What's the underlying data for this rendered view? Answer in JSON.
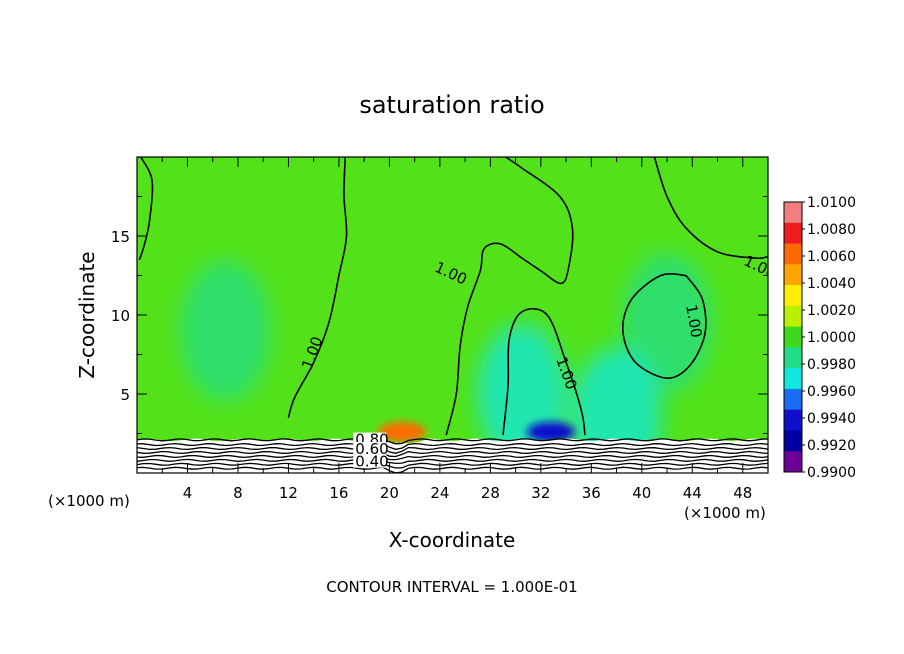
{
  "chart_data": {
    "type": "heatmap",
    "title": "saturation ratio",
    "xlabel": "X-coordinate",
    "ylabel": "Z-coordinate",
    "x_unit_left": "(×1000 m)",
    "x_unit_right": "(×1000 m)",
    "xlim": [
      0,
      50
    ],
    "ylim": [
      0,
      20
    ],
    "xticks": [
      4,
      8,
      12,
      16,
      20,
      24,
      28,
      32,
      36,
      40,
      44,
      48
    ],
    "yticks": [
      5,
      10,
      15
    ],
    "footer": "CONTOUR INTERVAL = 1.000E-01",
    "colorbar": {
      "labels": [
        "1.0100",
        "1.0080",
        "1.0060",
        "1.0040",
        "1.0020",
        "1.0000",
        "0.9980",
        "0.9960",
        "0.9940",
        "0.9920",
        "0.9900"
      ],
      "colors": [
        "#f08080",
        "#ee1c1c",
        "#ff6a00",
        "#ffa500",
        "#ffee00",
        "#b8f000",
        "#3dd91c",
        "#22dd88",
        "#10e8e0",
        "#1b6cf0",
        "#1010cc",
        "#0000a0",
        "#6a0096"
      ]
    },
    "contour_labels": [
      {
        "text": "1.00",
        "x": 23.5,
        "z": 12.8
      },
      {
        "text": "1.00",
        "x": 48.0,
        "z": 13.2
      },
      {
        "text": "1.00",
        "x": 43.5,
        "z": 10.6
      },
      {
        "text": "1.00",
        "x": 33.2,
        "z": 7.2
      },
      {
        "text": "1.00",
        "x": 13.8,
        "z": 6.5
      },
      {
        "text": "0.80",
        "x": 17.3,
        "z": 1.8
      },
      {
        "text": "0.60",
        "x": 17.3,
        "z": 1.2
      },
      {
        "text": "0.40",
        "x": 17.3,
        "z": 0.4
      }
    ],
    "contours_1_00": [
      [
        [
          0.3,
          20
        ],
        [
          1.2,
          18.5
        ],
        [
          1.0,
          16
        ],
        [
          0.6,
          14.5
        ],
        [
          0.2,
          13.5
        ]
      ],
      [
        [
          16.5,
          20
        ],
        [
          16.4,
          17.5
        ],
        [
          16.6,
          15
        ],
        [
          16.0,
          12.5
        ],
        [
          15.2,
          9.5
        ],
        [
          14.0,
          7
        ],
        [
          12.5,
          4.8
        ],
        [
          12.0,
          3.5
        ]
      ],
      [
        [
          24.5,
          2.4
        ],
        [
          25.3,
          5
        ],
        [
          25.6,
          8
        ],
        [
          26.2,
          10.5
        ],
        [
          27.2,
          12.8
        ],
        [
          27.5,
          14.2
        ],
        [
          28.8,
          14.5
        ],
        [
          30.5,
          13.6
        ],
        [
          32.0,
          12.8
        ],
        [
          33.6,
          12.0
        ],
        [
          34.2,
          13.0
        ],
        [
          34.5,
          15.5
        ],
        [
          33.5,
          17.5
        ],
        [
          30.5,
          19.3
        ],
        [
          29.2,
          20
        ]
      ],
      [
        [
          29.0,
          2.4
        ],
        [
          29.4,
          5.5
        ],
        [
          29.5,
          8.5
        ],
        [
          30.5,
          10.2
        ],
        [
          32.5,
          10.0
        ],
        [
          34.0,
          7.0
        ],
        [
          35.2,
          4.0
        ],
        [
          35.5,
          2.4
        ]
      ],
      [
        [
          41.0,
          20
        ],
        [
          42.0,
          17.5
        ],
        [
          43.5,
          15.5
        ],
        [
          46.0,
          14.0
        ],
        [
          49.0,
          13.6
        ],
        [
          50,
          13.7
        ]
      ],
      [
        [
          43.5,
          12.5
        ],
        [
          41.5,
          12.5
        ],
        [
          39.2,
          11
        ],
        [
          38.5,
          9
        ],
        [
          39.5,
          7
        ],
        [
          42.0,
          6.0
        ],
        [
          43.8,
          6.8
        ],
        [
          45.0,
          8.8
        ],
        [
          44.8,
          11.0
        ],
        [
          43.5,
          12.5
        ]
      ]
    ],
    "lower_contours_z_at_x0": [
      2.1,
      1.8,
      1.55,
      1.3,
      1.05,
      0.8,
      0.55,
      0.3
    ],
    "hotspot_centers": [
      {
        "x": 21.0,
        "z": 2.6,
        "value": 1.007
      },
      {
        "x": 32.8,
        "z": 2.6,
        "value": 0.9935
      },
      {
        "x": 7.0,
        "z": 9.0,
        "value": 0.998
      },
      {
        "x": 30.5,
        "z": 5.0,
        "value": 0.997
      },
      {
        "x": 42.0,
        "z": 9.5,
        "value": 0.998
      },
      {
        "x": 38.0,
        "z": 3.5,
        "value": 0.997
      }
    ]
  }
}
